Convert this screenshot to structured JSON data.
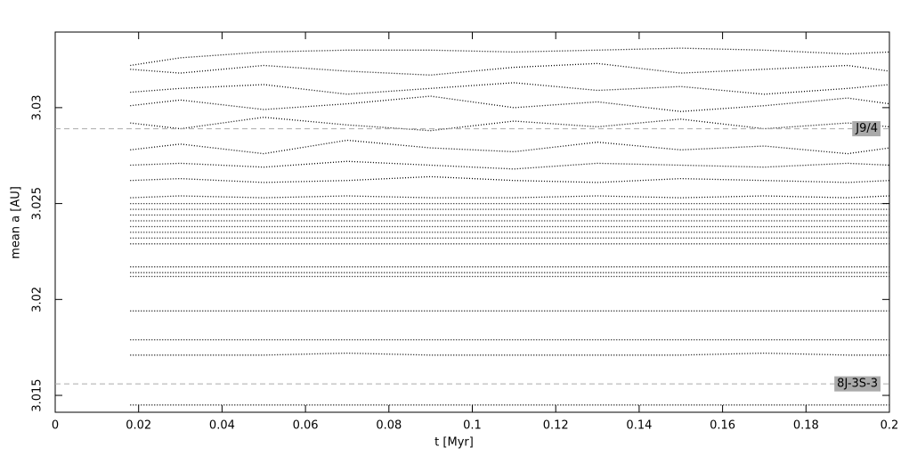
{
  "chart_data": {
    "type": "line",
    "x_label": "t [Myr]",
    "y_label": "mean a [AU]",
    "xlim": [
      0,
      0.2
    ],
    "xticks": [
      0,
      0.02,
      0.04,
      0.06,
      0.08,
      0.1,
      0.12,
      0.14,
      0.16,
      0.18,
      0.2
    ],
    "ylim": [
      3.01412,
      3.03394
    ],
    "yticks": [
      3.015,
      3.02,
      3.025,
      3.03
    ],
    "annotations": [
      {
        "label": "J9/4",
        "y": 3.0289
      },
      {
        "label": "8J-3S-3",
        "y": 3.0156
      }
    ],
    "x": [
      0.018,
      0.03,
      0.05,
      0.07,
      0.09,
      0.11,
      0.13,
      0.15,
      0.17,
      0.19,
      0.2
    ],
    "series": [
      {
        "color": "#000000",
        "values": [
          3.0145,
          3.0145,
          3.0145,
          3.0145,
          3.0145,
          3.0145,
          3.0145,
          3.0145,
          3.0145,
          3.0145,
          3.0145
        ]
      },
      {
        "color": "#000000",
        "values": [
          3.0171,
          3.0171,
          3.0171,
          3.0172,
          3.0171,
          3.0171,
          3.0171,
          3.0171,
          3.0172,
          3.0171,
          3.0171
        ]
      },
      {
        "color": "#000000",
        "values": [
          3.0179,
          3.0179,
          3.0179,
          3.0179,
          3.0179,
          3.0179,
          3.0179,
          3.0179,
          3.0179,
          3.0179,
          3.0179
        ]
      },
      {
        "color": "#000000",
        "values": [
          3.0194,
          3.0194,
          3.0194,
          3.0194,
          3.0194,
          3.0194,
          3.0194,
          3.0194,
          3.0194,
          3.0194,
          3.0194
        ]
      },
      {
        "color": "#000000",
        "values": [
          3.0212,
          3.0212,
          3.0212,
          3.0212,
          3.0212,
          3.0212,
          3.0212,
          3.0212,
          3.0212,
          3.0212,
          3.0212
        ]
      },
      {
        "color": "#000000",
        "values": [
          3.0214,
          3.0214,
          3.0214,
          3.0214,
          3.0214,
          3.0214,
          3.0214,
          3.0214,
          3.0214,
          3.0214,
          3.0214
        ]
      },
      {
        "color": "#000000",
        "values": [
          3.0217,
          3.0217,
          3.0217,
          3.0217,
          3.0217,
          3.0217,
          3.0217,
          3.0217,
          3.0217,
          3.0217,
          3.0217
        ]
      },
      {
        "color": "#000000",
        "values": [
          3.0229,
          3.0229,
          3.0229,
          3.0229,
          3.0229,
          3.0229,
          3.0229,
          3.0229,
          3.0229,
          3.0229,
          3.0229
        ]
      },
      {
        "color": "#000000",
        "values": [
          3.0232,
          3.0232,
          3.0232,
          3.0232,
          3.0232,
          3.0232,
          3.0232,
          3.0232,
          3.0232,
          3.0232,
          3.0232
        ]
      },
      {
        "color": "#000000",
        "values": [
          3.0235,
          3.0235,
          3.0235,
          3.0235,
          3.0235,
          3.0235,
          3.0235,
          3.0235,
          3.0235,
          3.0235,
          3.0235
        ]
      },
      {
        "color": "#000000",
        "values": [
          3.0238,
          3.0238,
          3.0238,
          3.0238,
          3.0238,
          3.0238,
          3.0238,
          3.0238,
          3.0238,
          3.0238,
          3.0238
        ]
      },
      {
        "color": "#000000",
        "values": [
          3.0241,
          3.0241,
          3.0241,
          3.0241,
          3.0241,
          3.0241,
          3.0241,
          3.0241,
          3.0241,
          3.0241,
          3.0241
        ]
      },
      {
        "color": "#000000",
        "values": [
          3.0244,
          3.0244,
          3.0244,
          3.0244,
          3.0244,
          3.0244,
          3.0244,
          3.0244,
          3.0244,
          3.0244,
          3.0244
        ]
      },
      {
        "color": "#000000",
        "values": [
          3.0247,
          3.0247,
          3.0247,
          3.0247,
          3.0247,
          3.0247,
          3.0247,
          3.0247,
          3.0247,
          3.0247,
          3.0247
        ]
      },
      {
        "color": "#000000",
        "values": [
          3.025,
          3.025,
          3.025,
          3.025,
          3.025,
          3.025,
          3.025,
          3.025,
          3.025,
          3.025,
          3.025
        ]
      },
      {
        "color": "#000000",
        "values": [
          3.0253,
          3.0254,
          3.0253,
          3.0254,
          3.0253,
          3.0253,
          3.0254,
          3.0253,
          3.0254,
          3.0253,
          3.0254
        ]
      },
      {
        "color": "#000000",
        "values": [
          3.0262,
          3.0263,
          3.0261,
          3.0262,
          3.0264,
          3.0262,
          3.0261,
          3.0263,
          3.0262,
          3.0261,
          3.0262
        ]
      },
      {
        "color": "#000000",
        "values": [
          3.027,
          3.0271,
          3.0269,
          3.0272,
          3.027,
          3.0268,
          3.0271,
          3.027,
          3.0269,
          3.0271,
          3.027
        ]
      },
      {
        "color": "#000000",
        "values": [
          3.0278,
          3.0281,
          3.0276,
          3.0283,
          3.0279,
          3.0277,
          3.0282,
          3.0278,
          3.028,
          3.0276,
          3.0279
        ]
      },
      {
        "color": "#000000",
        "values": [
          3.0292,
          3.0289,
          3.0295,
          3.0291,
          3.0288,
          3.0293,
          3.029,
          3.0294,
          3.0289,
          3.0292,
          3.029
        ]
      },
      {
        "color": "#000000",
        "values": [
          3.0301,
          3.0304,
          3.0299,
          3.0302,
          3.0306,
          3.03,
          3.0303,
          3.0298,
          3.0301,
          3.0305,
          3.0302
        ]
      },
      {
        "color": "#000000",
        "values": [
          3.0308,
          3.031,
          3.0312,
          3.0307,
          3.031,
          3.0313,
          3.0309,
          3.0311,
          3.0307,
          3.031,
          3.0312
        ]
      },
      {
        "color": "#000000",
        "values": [
          3.032,
          3.0318,
          3.0322,
          3.0319,
          3.0317,
          3.0321,
          3.0323,
          3.0318,
          3.032,
          3.0322,
          3.0319
        ]
      },
      {
        "color": "#000000",
        "values": [
          3.0322,
          3.0326,
          3.0329,
          3.033,
          3.033,
          3.0329,
          3.033,
          3.0331,
          3.033,
          3.0328,
          3.0329
        ]
      }
    ]
  }
}
